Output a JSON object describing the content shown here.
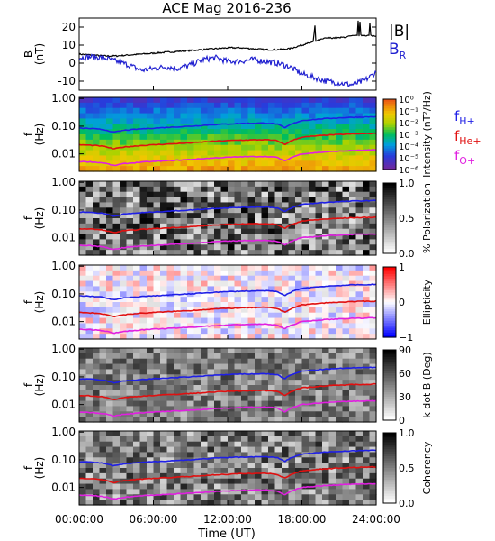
{
  "title": "ACE Mag 2016-236",
  "x_axis": {
    "label": "Time (UT)",
    "ticks": [
      "00:00:00",
      "06:00:00",
      "12:00:00",
      "18:00:00",
      "24:00:00"
    ],
    "hours": [
      0,
      6,
      12,
      18,
      24
    ]
  },
  "colors": {
    "bmag": "#000000",
    "br": "#1f1fd0",
    "h": "#1f1fe6",
    "he": "#e01010",
    "o": "#e020e0"
  },
  "chart_data": [
    {
      "type": "line",
      "panel": "field",
      "ylabel": [
        "B",
        "(nT)"
      ],
      "yticks": [
        20,
        10,
        0,
        -10
      ],
      "ylim": [
        -15,
        25
      ],
      "legend": [
        "|B|",
        "B",
        "R"
      ],
      "series": [
        {
          "name": "|B|",
          "x_hours": [
            0,
            1,
            2,
            3,
            4,
            5,
            6,
            7,
            8,
            9,
            10,
            11,
            12,
            13,
            14,
            15,
            16,
            17,
            18,
            19,
            20,
            21,
            22,
            23,
            24
          ],
          "values": [
            5,
            4.5,
            4,
            4,
            4.5,
            5,
            5.5,
            6,
            6.5,
            7,
            7.5,
            8,
            8.5,
            8.5,
            8,
            7.5,
            7.5,
            8,
            10,
            12,
            14,
            14,
            15,
            15.5,
            15
          ]
        },
        {
          "name": "B_R",
          "x_hours": [
            0,
            1,
            2,
            3,
            4,
            5,
            6,
            7,
            8,
            9,
            10,
            11,
            12,
            13,
            14,
            15,
            16,
            17,
            18,
            19,
            20,
            21,
            22,
            23,
            24
          ],
          "values": [
            3,
            3.5,
            3,
            1,
            -1,
            -4,
            -3,
            -2,
            -3,
            -1,
            2,
            3,
            1,
            1,
            2,
            1,
            0,
            -2,
            -6,
            -8,
            -10,
            -11,
            -12,
            -10,
            -5
          ]
        }
      ]
    },
    {
      "type": "heatmap",
      "panel": "intensity",
      "ylabel": [
        "f",
        "(Hz)"
      ],
      "yticks": [
        "1.00",
        "0.10",
        "0.01"
      ],
      "colorbar": {
        "label": "Intensity (nT²/Hz)",
        "ticks": [
          "10⁰",
          "10⁻¹",
          "10⁻²",
          "10⁻³",
          "10⁻⁴",
          "10⁻⁵",
          "10⁻⁶"
        ]
      },
      "legend": [
        {
          "base": "f",
          "sub": "H+"
        },
        {
          "base": "f",
          "sub": "He+"
        },
        {
          "base": "f",
          "sub": "O+"
        }
      ]
    },
    {
      "type": "heatmap",
      "panel": "polarization",
      "ylabel": [
        "f",
        "(Hz)"
      ],
      "yticks": [
        "1.00",
        "0.10",
        "0.01"
      ],
      "colorbar": {
        "label": "% Polarization",
        "ticks": [
          "1.0",
          "0.5",
          "0.0"
        ]
      }
    },
    {
      "type": "heatmap",
      "panel": "ellipticity",
      "ylabel": [
        "f",
        "(Hz)"
      ],
      "yticks": [
        "1.00",
        "0.10",
        "0.01"
      ],
      "colorbar": {
        "label": "Ellipticity",
        "ticks": [
          "1",
          "0",
          "−1"
        ]
      }
    },
    {
      "type": "heatmap",
      "panel": "kdotb",
      "ylabel": [
        "f",
        "(Hz)"
      ],
      "yticks": [
        "1.00",
        "0.10",
        "0.01"
      ],
      "colorbar": {
        "label": "k dot B (Deg)",
        "ticks": [
          "90",
          "60",
          "30",
          "0"
        ]
      }
    },
    {
      "type": "heatmap",
      "panel": "coherency",
      "ylabel": [
        "f",
        "(Hz)"
      ],
      "yticks": [
        "1.00",
        "0.10",
        "0.01"
      ],
      "colorbar": {
        "label": "Coherency",
        "ticks": [
          "1.0",
          "0.5",
          "0.0"
        ]
      }
    }
  ],
  "gyrofrequency_lines": {
    "x_hours": [
      0,
      1,
      2,
      2.8,
      3.5,
      5,
      7,
      9,
      11,
      13,
      15,
      16,
      16.6,
      17,
      18,
      20,
      22,
      24
    ],
    "fH_hz": [
      0.085,
      0.082,
      0.075,
      0.06,
      0.07,
      0.08,
      0.09,
      0.1,
      0.115,
      0.125,
      0.13,
      0.12,
      0.085,
      0.11,
      0.16,
      0.19,
      0.21,
      0.22
    ]
  }
}
